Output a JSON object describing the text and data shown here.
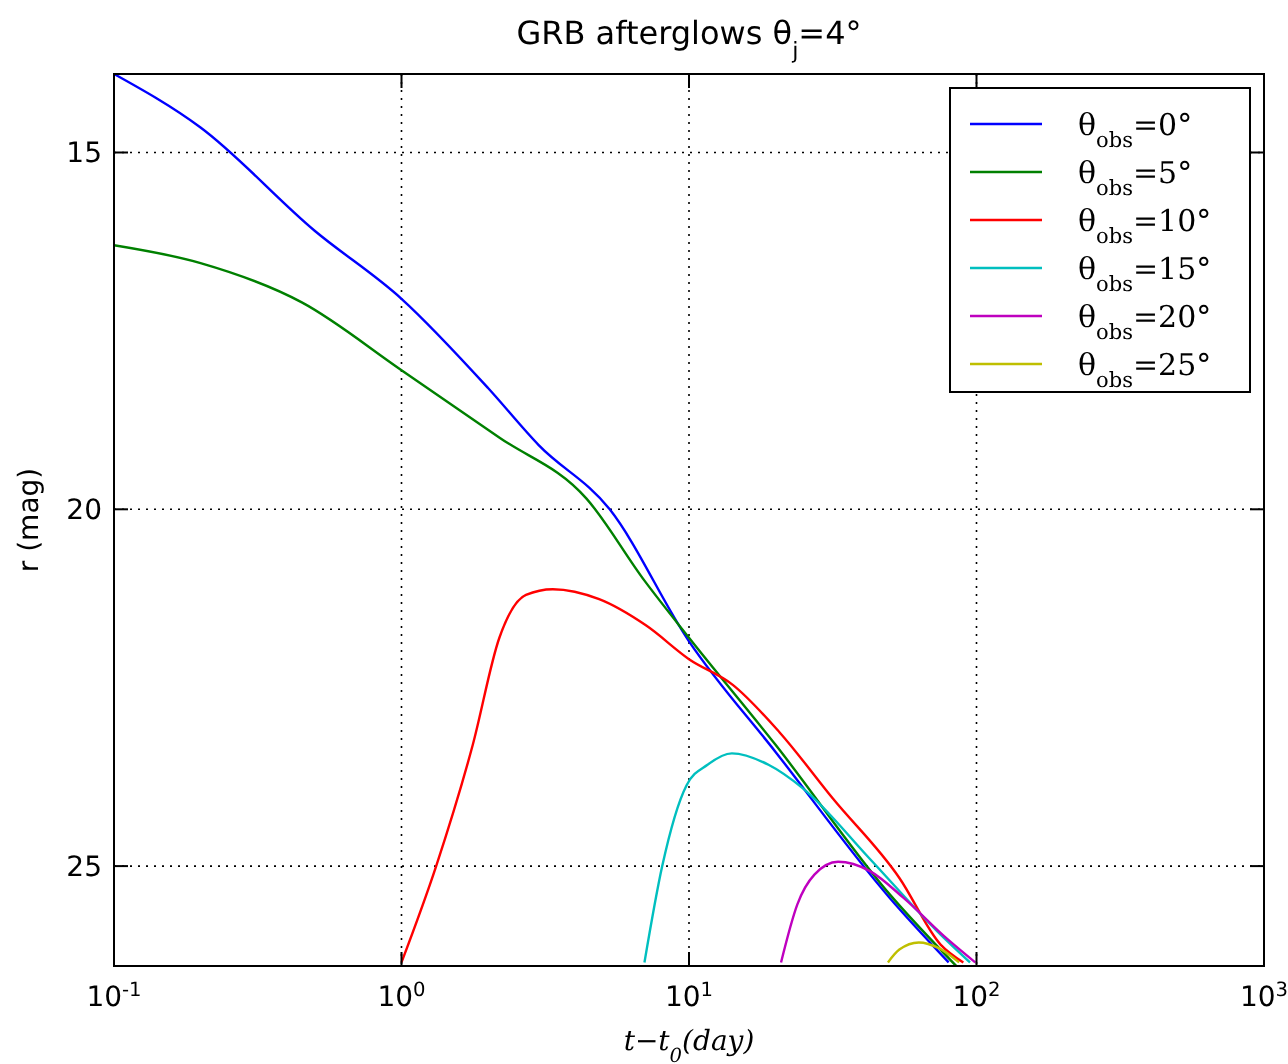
{
  "chart_data": {
    "type": "line",
    "title": "GRB afterglows θ$_{j}$=4°",
    "xlabel": "t−t$_{0}$(day)",
    "ylabel": "r (mag)",
    "log": "x",
    "grid": true,
    "legend": "top right",
    "line_style": "solid",
    "marker": "none",
    "xlim": [
      0.1,
      1000
    ],
    "xticks": [
      {
        "value": 0.1,
        "label": "10$^{-1}$"
      },
      {
        "value": 1,
        "label": "10$^{0}$"
      },
      {
        "value": 10,
        "label": "10$^{1}$"
      },
      {
        "value": 100,
        "label": "10$^{2}$"
      },
      {
        "value": 1000,
        "label": "10$^{3}$"
      }
    ],
    "ylim": [
      26.4,
      13.9
    ],
    "yticks": [
      15,
      20,
      25
    ],
    "series": [
      {
        "name": "θ$_{obs}$=0°",
        "color": "#0000ff",
        "x": [
          0.1,
          0.2,
          0.5,
          1,
          2,
          3,
          5.3,
          10,
          20,
          50,
          80
        ],
        "values": [
          13.9,
          14.65,
          16.1,
          17.05,
          18.3,
          19.1,
          20,
          21.85,
          23.4,
          25.45,
          26.35
        ]
      },
      {
        "name": "θ$_{obs}$=5°",
        "color": "#008000",
        "x": [
          0.1,
          0.2,
          0.45,
          1,
          2.2,
          4.4,
          7,
          10,
          20,
          50,
          85
        ],
        "values": [
          16.3,
          16.55,
          17.1,
          18.05,
          19,
          19.85,
          21,
          21.8,
          23.3,
          25.4,
          26.4
        ]
      },
      {
        "name": "θ$_{obs}$=10°",
        "color": "#ff0000",
        "x": [
          1,
          1.32,
          1.77,
          2.19,
          2.71,
          3.36,
          4.87,
          7.1,
          10,
          14.2,
          20.6,
          31.6,
          54,
          75,
          90
        ],
        "values": [
          26.35,
          25,
          23.3,
          21.8,
          21.2,
          21.12,
          21.26,
          21.63,
          22.1,
          22.46,
          23.12,
          24.05,
          25.17,
          26.1,
          26.35
        ]
      },
      {
        "name": "θ$_{obs}$=15°",
        "color": "#00bfbf",
        "x": [
          7,
          8.07,
          9.8,
          11.6,
          14.1,
          18.9,
          24.9,
          42.6,
          72.9,
          95
        ],
        "values": [
          26.35,
          25,
          23.87,
          23.58,
          23.42,
          23.58,
          23.91,
          24.9,
          25.91,
          26.35
        ]
      },
      {
        "name": "θ$_{obs}$=20°",
        "color": "#bf00bf",
        "x": [
          20.9,
          23.8,
          27.3,
          33,
          42.6,
          55.9,
          78,
          99
        ],
        "values": [
          26.35,
          25.54,
          25.12,
          24.94,
          25.07,
          25.45,
          26,
          26.35
        ]
      },
      {
        "name": "θ$_{obs}$=25°",
        "color": "#bfbf00",
        "x": [
          49.2,
          53.9,
          63,
          74,
          87
        ],
        "values": [
          26.35,
          26.17,
          26.07,
          26.15,
          26.35
        ]
      }
    ]
  }
}
